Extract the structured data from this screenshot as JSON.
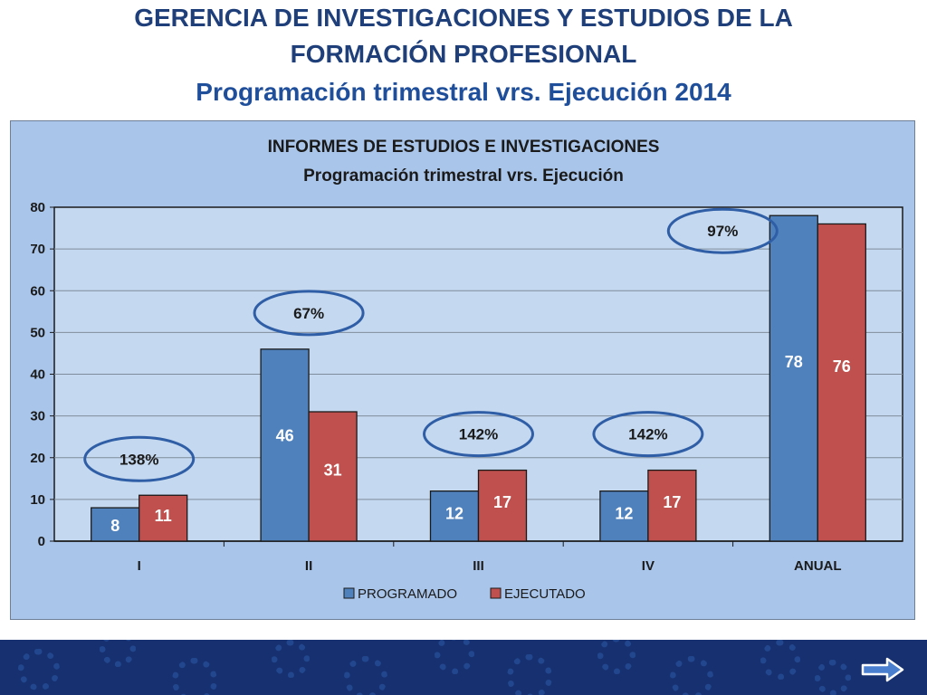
{
  "header": {
    "line1": "GERENCIA DE INVESTIGACIONES Y ESTUDIOS DE LA",
    "line2": "FORMACIÓN PROFESIONAL",
    "line3": "Programación trimestral vrs. Ejecución 2014"
  },
  "chart_data": {
    "type": "bar",
    "title": "INFORMES DE ESTUDIOS E INVESTIGACIONES",
    "subtitle": "Programación trimestral vrs. Ejecución",
    "categories": [
      "I",
      "II",
      "III",
      "IV",
      "ANUAL"
    ],
    "series": [
      {
        "name": "PROGRAMADO",
        "values": [
          8,
          46,
          12,
          12,
          78
        ],
        "color": "#4f81bd"
      },
      {
        "name": "EJECUTADO",
        "values": [
          11,
          31,
          17,
          17,
          76
        ],
        "color": "#c0504d"
      }
    ],
    "annotations": [
      "138%",
      "67%",
      "142%",
      "142%",
      "97%"
    ],
    "ylim": [
      0,
      80
    ],
    "yticks": [
      0,
      10,
      20,
      30,
      40,
      50,
      60,
      70,
      80
    ],
    "grid": true,
    "legend": "bottom"
  },
  "footer": {
    "next_icon": "arrow-right-icon"
  }
}
